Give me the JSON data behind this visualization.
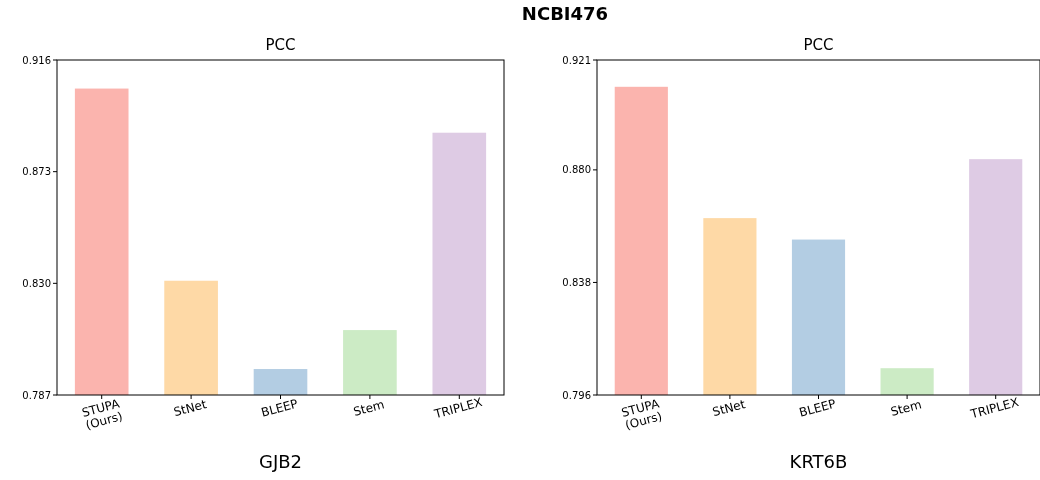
{
  "chart_data": [
    {
      "type": "bar",
      "title": "PCC",
      "xlabel": "GJB2",
      "annotations": [
        "NCBI476"
      ],
      "categories": [
        "STUPA\n(Ours)",
        "StNet",
        "BLEEP",
        "Stem",
        "TRIPLEX"
      ],
      "values": [
        0.905,
        0.831,
        0.797,
        0.812,
        0.888
      ],
      "colors": [
        "#fbb4ae",
        "#fed9a6",
        "#b3cde3",
        "#ccebc5",
        "#decbe4"
      ],
      "ylim": [
        0.787,
        0.916
      ],
      "yticks": [
        0.787,
        {
          "value": 0.83,
          "label": "0.830"
        },
        0.873,
        0.916
      ]
    },
    {
      "type": "bar",
      "title": "PCC",
      "xlabel": "KRT6B",
      "categories": [
        "STUPA\n(Ours)",
        "StNet",
        "BLEEP",
        "Stem",
        "TRIPLEX"
      ],
      "values": [
        0.911,
        0.862,
        0.854,
        0.806,
        0.884
      ],
      "colors": [
        "#fbb4ae",
        "#fed9a6",
        "#b3cde3",
        "#ccebc5",
        "#decbe4"
      ],
      "ylim": [
        0.796,
        0.921
      ],
      "yticks": [
        0.796,
        0.838,
        {
          "value": 0.88,
          "label": "0.880"
        },
        0.921
      ]
    }
  ]
}
